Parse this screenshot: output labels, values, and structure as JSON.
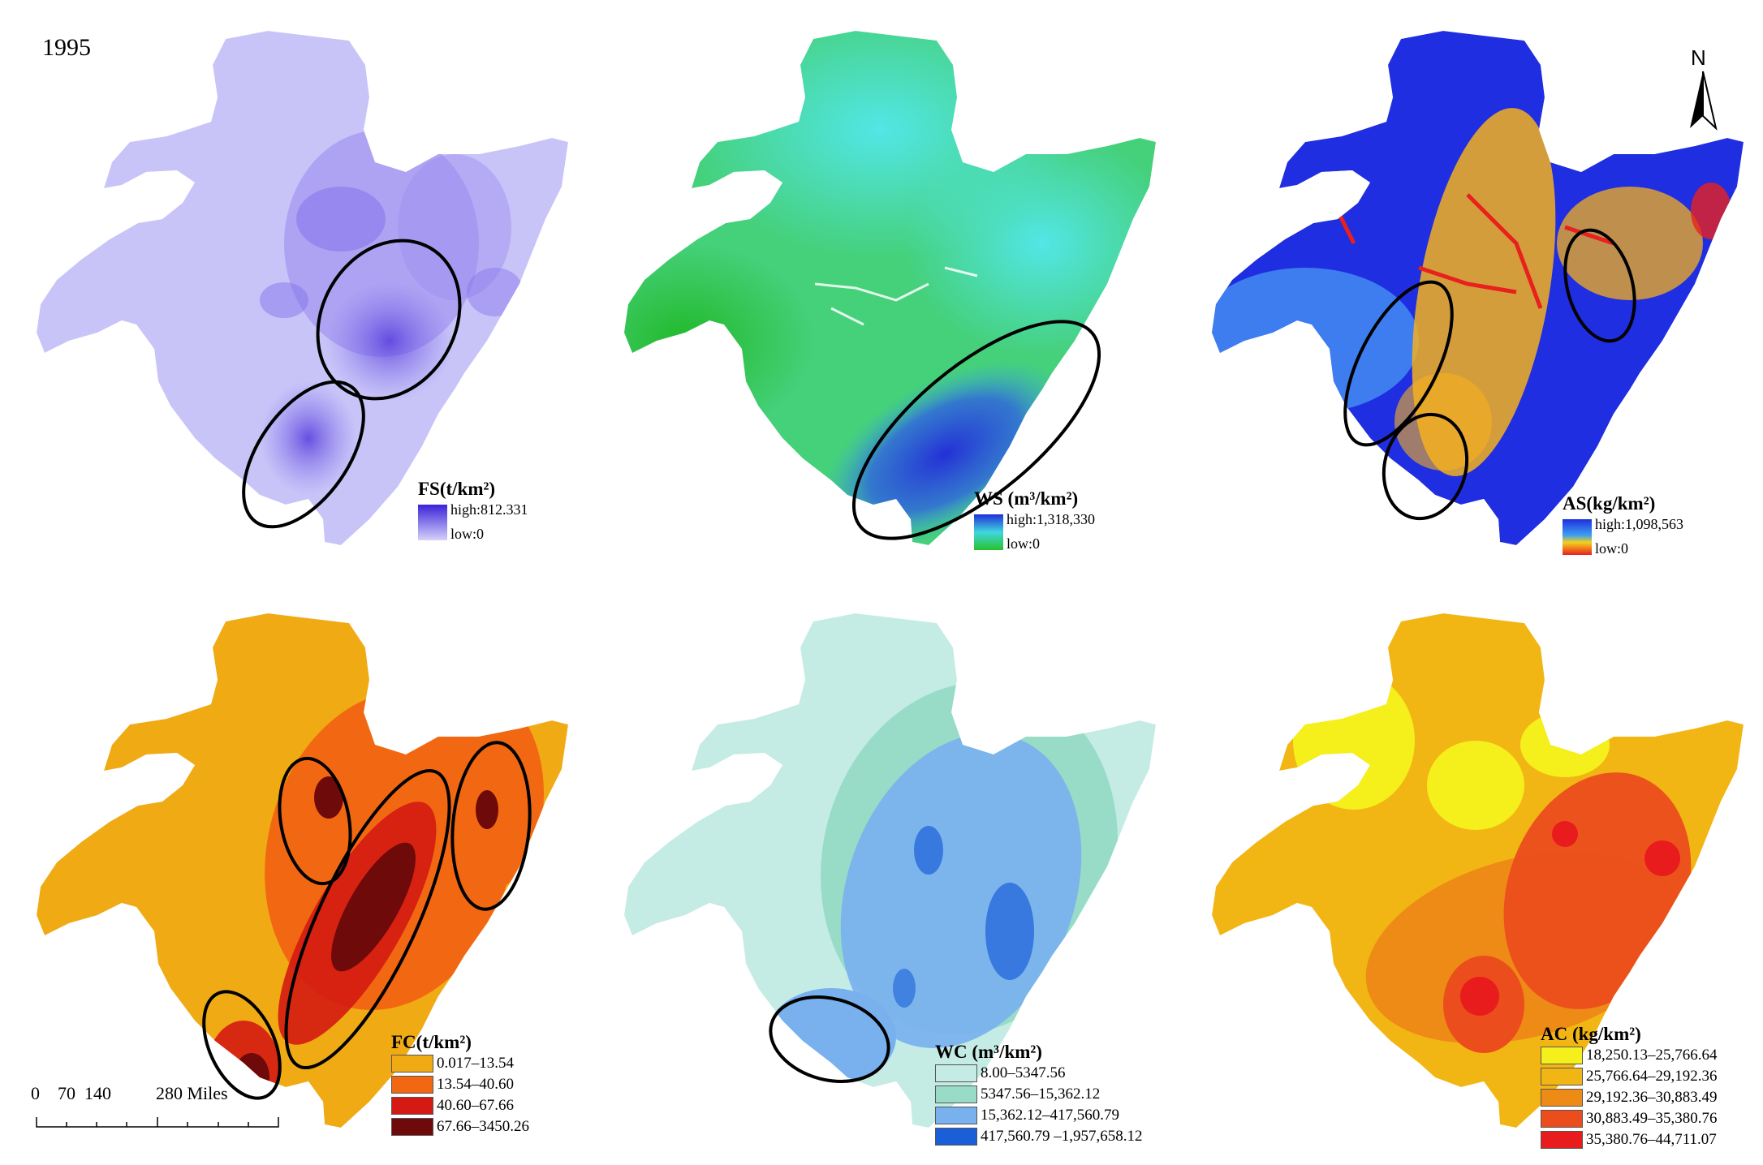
{
  "figure": {
    "year": "1995",
    "north_arrow_label": "N",
    "scale_bar": {
      "ticks": [
        "0",
        "70",
        "140"
      ],
      "last": "280 Miles"
    }
  },
  "colors": {
    "fs": {
      "base": "#c8c4f8",
      "dense": "#6a52e4",
      "mid": "#9d8ef0"
    },
    "ws": {
      "base": "#45d07a",
      "cyan": "#4fe2e0",
      "blue": "#2e4bd8",
      "green": "#2cc23c"
    },
    "as": {
      "blue": "#1f2ee0",
      "lightblue": "#3d7df0",
      "orange": "#f5b01e",
      "red": "#e8201e"
    },
    "fc": [
      "#f0aa14",
      "#f26812",
      "#d41a12",
      "#6e0a0a"
    ],
    "wc": [
      "#c4ece4",
      "#98dcc8",
      "#79b0ee",
      "#1a5fd8"
    ],
    "ac": [
      "#f5ef1c",
      "#f2b614",
      "#ee8a16",
      "#eb4e1c",
      "#e81c1c"
    ]
  },
  "panels": {
    "fs": {
      "title": "FS(t/km²)",
      "high": "high:812.331",
      "low": "low:0"
    },
    "ws": {
      "title": "WS (m³/km²)",
      "high": "high:1,318,330",
      "low": "low:0"
    },
    "as": {
      "title": "AS(kg/km²)",
      "high": "high:1,098,563",
      "low": "low:0"
    },
    "fc": {
      "title": "FC(t/km²)",
      "classes": [
        "0.017–13.54",
        "13.54–40.60",
        "40.60–67.66",
        "67.66–3450.26"
      ]
    },
    "wc": {
      "title": "WC (m³/km²)",
      "classes": [
        "8.00–5347.56",
        "5347.56–15,362.12",
        "15,362.12–417,560.79",
        "417,560.79 –1,957,658.12"
      ]
    },
    "ac": {
      "title": "AC (kg/km²)",
      "classes": [
        "18,250.13–25,766.64",
        "25,766.64–29,192.36",
        "29,192.36–30,883.49",
        "30,883.49–35,380.76",
        "35,380.76–44,711.07"
      ]
    }
  }
}
